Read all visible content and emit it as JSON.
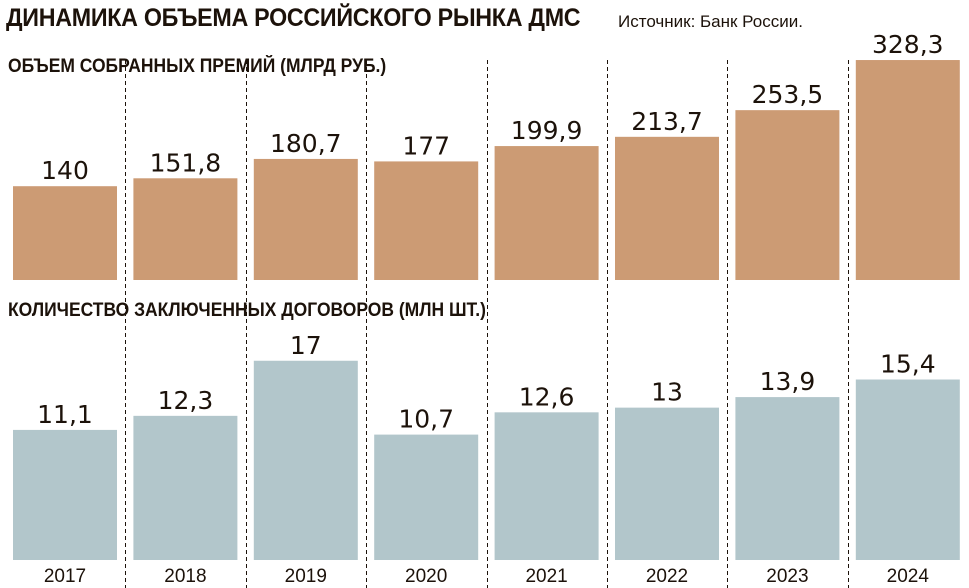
{
  "chart_data": [
    {
      "type": "bar",
      "title": "ДИНАМИКА ОБЪЕМА РОССИЙСКОГО РЫНКА ДМС",
      "source": "Источник: Банк России.",
      "subtitle": "ОБЪЕМ СОБРАННЫХ ПРЕМИЙ (МЛРД РУБ.)",
      "categories": [
        "2017",
        "2018",
        "2019",
        "2020",
        "2021",
        "2022",
        "2023",
        "2024"
      ],
      "values": [
        140,
        151.8,
        180.7,
        177,
        199.9,
        213.7,
        253.5,
        328.3
      ],
      "labels": [
        "140",
        "151,8",
        "180,7",
        "177",
        "199,9",
        "213,7",
        "253,5",
        "328,3"
      ],
      "color": "#CC9B74",
      "ylim": [
        0,
        340
      ]
    },
    {
      "type": "bar",
      "subtitle": "КОЛИЧЕСТВО ЗАКЛЮЧЕННЫХ ДОГОВОРОВ (МЛН ШТ.)",
      "categories": [
        "2017",
        "2018",
        "2019",
        "2020",
        "2021",
        "2022",
        "2023",
        "2024"
      ],
      "values": [
        11.1,
        12.3,
        17,
        10.7,
        12.6,
        13,
        13.9,
        15.4
      ],
      "labels": [
        "11,1",
        "12,3",
        "17",
        "10,7",
        "12,6",
        "13",
        "13,9",
        "15,4"
      ],
      "color": "#B2C6CB",
      "ylim": [
        0,
        17.5
      ]
    }
  ]
}
